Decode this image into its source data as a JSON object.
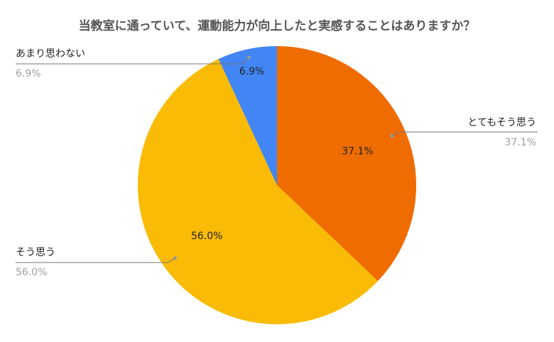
{
  "chart_data": {
    "type": "pie",
    "title": "当教室に通っていて、運動能力が向上したと実感することはありますか？",
    "slices": [
      {
        "label": "とてもそう思う",
        "value": 37.1,
        "display": "37.1%",
        "color": "#ef6c00"
      },
      {
        "label": "そう思う",
        "value": 56.0,
        "display": "56.0%",
        "color": "#f9bb05"
      },
      {
        "label": "あまり思わない",
        "value": 6.9,
        "display": "6.9%",
        "color": "#4285f4"
      }
    ],
    "start": "12 o'clock",
    "direction": "clockwise",
    "legend": "callouts"
  }
}
